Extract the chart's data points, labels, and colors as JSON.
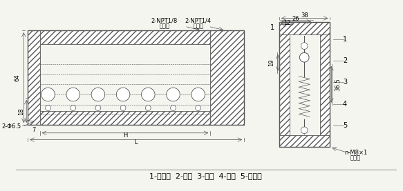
{
  "bg_color": "#f5f5f0",
  "line_color": "#555555",
  "hatch_color": "#888888",
  "title_bottom": "1-密封垫  2-阀芯  3-阀套  4-弹簧  5-橡胶球",
  "label_2npt18": "2-NPT1/8",
  "label_jin_you": "进油口",
  "label_2npt14": "2-NPT1/4",
  "label_jin_qi": "进气口",
  "label_38": "38",
  "label_26": "26",
  "label_12": "12",
  "label_64": "64",
  "label_18": "18",
  "label_7": "7",
  "label_H": "H",
  "label_L": "L",
  "label_365": "36.5",
  "label_19": "19",
  "label_2phi65": "2-Φ6.5",
  "label_n_m8": "n-M8×1",
  "label_chu_you": "出油口",
  "nums_1_5": [
    "1",
    "2",
    "3",
    "4",
    "5"
  ],
  "font_size_small": 6,
  "font_size_medium": 7,
  "font_size_label": 8
}
